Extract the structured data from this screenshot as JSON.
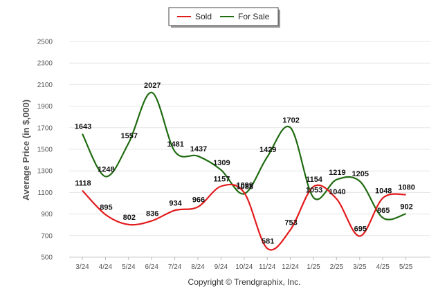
{
  "chart_data": {
    "type": "line",
    "title": "",
    "xlabel": "",
    "ylabel": "Average Price (in $,000)",
    "ylim": [
      500,
      2500
    ],
    "yticks": [
      500,
      700,
      900,
      1100,
      1300,
      1500,
      1700,
      1900,
      2100,
      2300,
      2500
    ],
    "categories": [
      "3/24",
      "4/24",
      "5/24",
      "6/24",
      "7/24",
      "8/24",
      "9/24",
      "10/24",
      "11/24",
      "12/24",
      "1/25",
      "2/25",
      "3/25",
      "4/25",
      "5/25"
    ],
    "grid": "horizontal",
    "legend_position": "top-center",
    "series": [
      {
        "name": "Sold",
        "color": "#e31a1c",
        "values": [
          1118,
          895,
          802,
          836,
          934,
          966,
          1157,
          1099,
          581,
          753,
          1154,
          1040,
          695,
          1048,
          1080
        ]
      },
      {
        "name": "For Sale",
        "color": "#1f6b10",
        "values": [
          1643,
          1248,
          1557,
          2027,
          1481,
          1437,
          1309,
          1088,
          1429,
          1702,
          1053,
          1219,
          1205,
          865,
          902
        ]
      }
    ],
    "credit": "Copyright © Trendgraphix, Inc."
  }
}
